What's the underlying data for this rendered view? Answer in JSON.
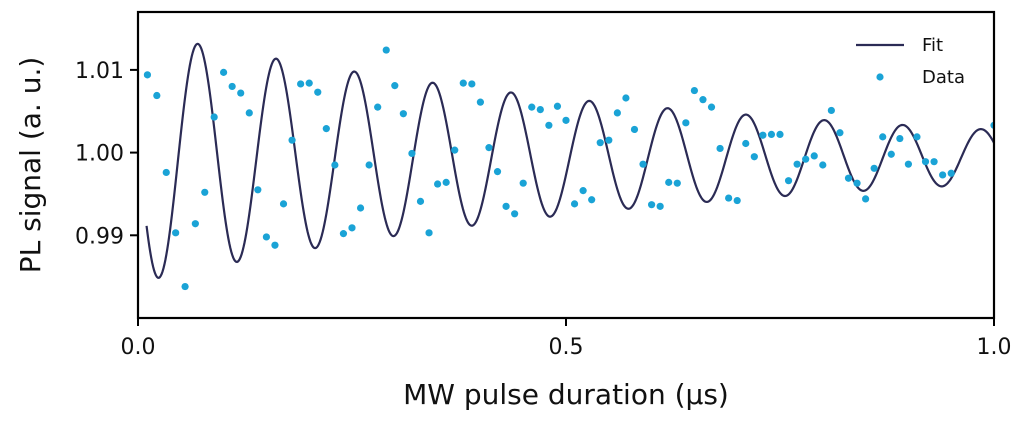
{
  "chart_data": {
    "type": "scatter",
    "xlabel": "MW pulse duration (μs)",
    "ylabel": "PL signal (a. u.)",
    "xlim": [
      0.0,
      1.0
    ],
    "ylim": [
      0.98,
      1.017
    ],
    "xticks": [
      0.0,
      0.5,
      1.0
    ],
    "xtick_labels": [
      "0.0",
      "0.5",
      "1.0"
    ],
    "yticks": [
      0.99,
      1.0,
      1.01
    ],
    "ytick_labels": [
      "0.99",
      "1.00",
      "1.01"
    ],
    "grid": false,
    "legend_position": "top-right",
    "colors": {
      "fit": "#2b2b55",
      "data": "#1aa3d6"
    },
    "series": [
      {
        "name": "Fit",
        "kind": "line",
        "model": {
          "offset": 0.9995,
          "amplitude": 0.0152,
          "decay_us": 0.65,
          "period_us": 0.0915,
          "phase": 0.07
        },
        "x_range": [
          0.01,
          1.0
        ]
      },
      {
        "name": "Data",
        "kind": "scatter",
        "points": [
          [
            0.011,
            1.0094
          ],
          [
            0.022,
            1.0069
          ],
          [
            0.033,
            0.9976
          ],
          [
            0.044,
            0.9903
          ],
          [
            0.055,
            0.9838
          ],
          [
            0.067,
            0.9914
          ],
          [
            0.078,
            0.9952
          ],
          [
            0.089,
            1.0043
          ],
          [
            0.1,
            1.0097
          ],
          [
            0.11,
            1.008
          ],
          [
            0.12,
            1.0072
          ],
          [
            0.13,
            1.0048
          ],
          [
            0.14,
            0.9955
          ],
          [
            0.15,
            0.9898
          ],
          [
            0.16,
            0.9888
          ],
          [
            0.17,
            0.9938
          ],
          [
            0.18,
            1.0015
          ],
          [
            0.19,
            1.0083
          ],
          [
            0.2,
            1.0084
          ],
          [
            0.21,
            1.0073
          ],
          [
            0.22,
            1.0029
          ],
          [
            0.23,
            0.9985
          ],
          [
            0.24,
            0.9902
          ],
          [
            0.25,
            0.9909
          ],
          [
            0.26,
            0.9933
          ],
          [
            0.27,
            0.9985
          ],
          [
            0.28,
            1.0055
          ],
          [
            0.29,
            1.0124
          ],
          [
            0.3,
            1.0081
          ],
          [
            0.31,
            1.0047
          ],
          [
            0.32,
            0.9999
          ],
          [
            0.33,
            0.9941
          ],
          [
            0.34,
            0.9903
          ],
          [
            0.35,
            0.9962
          ],
          [
            0.36,
            0.9964
          ],
          [
            0.37,
            1.0003
          ],
          [
            0.38,
            1.0084
          ],
          [
            0.39,
            1.0083
          ],
          [
            0.4,
            1.0061
          ],
          [
            0.41,
            1.0006
          ],
          [
            0.42,
            0.9977
          ],
          [
            0.43,
            0.9935
          ],
          [
            0.44,
            0.9926
          ],
          [
            0.45,
            0.9963
          ],
          [
            0.46,
            1.0055
          ],
          [
            0.47,
            1.0052
          ],
          [
            0.48,
            1.0033
          ],
          [
            0.49,
            1.0056
          ],
          [
            0.5,
            1.0039
          ],
          [
            0.51,
            0.9938
          ],
          [
            0.52,
            0.9954
          ],
          [
            0.53,
            0.9943
          ],
          [
            0.54,
            1.0012
          ],
          [
            0.55,
            1.0015
          ],
          [
            0.56,
            1.0048
          ],
          [
            0.57,
            1.0066
          ],
          [
            0.58,
            1.0028
          ],
          [
            0.59,
            0.9986
          ],
          [
            0.6,
            0.9937
          ],
          [
            0.61,
            0.9935
          ],
          [
            0.62,
            0.9964
          ],
          [
            0.63,
            0.9963
          ],
          [
            0.64,
            1.0036
          ],
          [
            0.65,
            1.0075
          ],
          [
            0.66,
            1.0064
          ],
          [
            0.67,
            1.0055
          ],
          [
            0.68,
            1.0005
          ],
          [
            0.69,
            0.9945
          ],
          [
            0.7,
            0.9942
          ],
          [
            0.71,
            1.0011
          ],
          [
            0.72,
            0.9995
          ],
          [
            0.73,
            1.0021
          ],
          [
            0.74,
            1.0022
          ],
          [
            0.75,
            1.0022
          ],
          [
            0.76,
            0.9966
          ],
          [
            0.77,
            0.9986
          ],
          [
            0.78,
            0.9992
          ],
          [
            0.79,
            0.9996
          ],
          [
            0.8,
            0.9985
          ],
          [
            0.81,
            1.0051
          ],
          [
            0.82,
            1.0024
          ],
          [
            0.83,
            0.9969
          ],
          [
            0.84,
            0.9963
          ],
          [
            0.85,
            0.9944
          ],
          [
            0.86,
            0.9981
          ],
          [
            0.87,
            1.0019
          ],
          [
            0.88,
            0.9998
          ],
          [
            0.89,
            1.0017
          ],
          [
            0.9,
            0.9986
          ],
          [
            0.91,
            1.0019
          ],
          [
            0.92,
            0.9989
          ],
          [
            0.93,
            0.9989
          ],
          [
            0.94,
            0.9973
          ],
          [
            0.95,
            0.9975
          ],
          [
            1.0,
            1.0033
          ]
        ]
      }
    ]
  }
}
